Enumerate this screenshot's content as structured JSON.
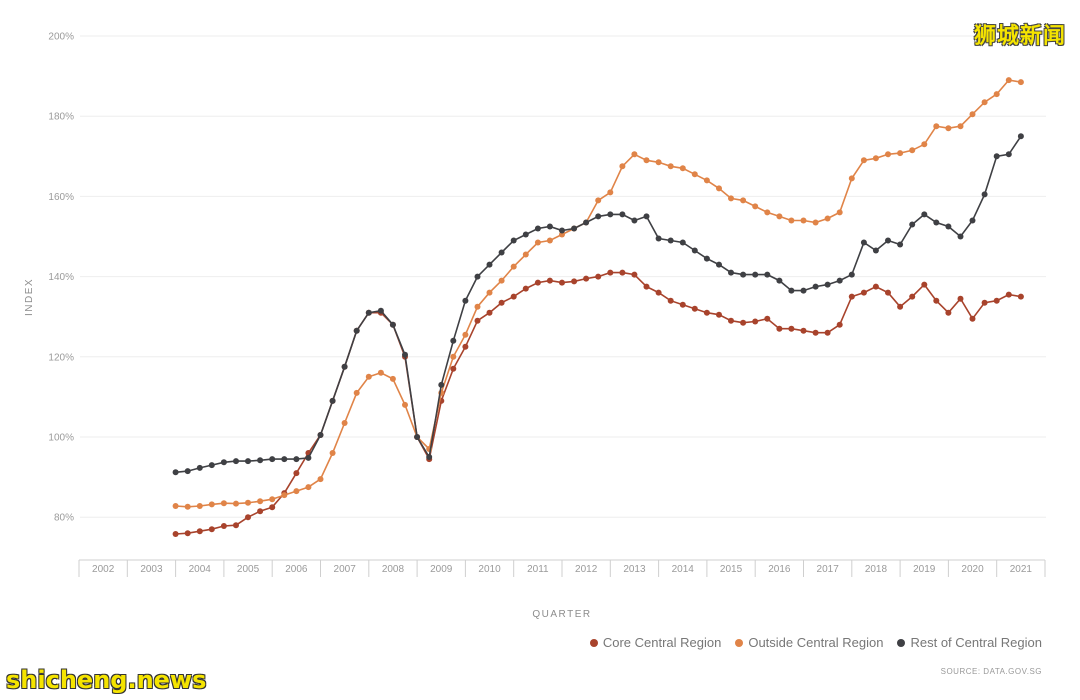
{
  "chart_data": {
    "type": "line",
    "xlabel": "QUARTER",
    "ylabel": "INDEX",
    "ylim": [
      70,
      200
    ],
    "yticks": [
      80,
      100,
      120,
      140,
      160,
      180,
      200
    ],
    "ytick_labels": [
      "80%",
      "100%",
      "120%",
      "140%",
      "160%",
      "180%",
      "200%"
    ],
    "xticks": [
      "2002",
      "2003",
      "2004",
      "2005",
      "2006",
      "2007",
      "2008",
      "2009",
      "2010",
      "2011",
      "2012",
      "2013",
      "2014",
      "2015",
      "2016",
      "2017",
      "2018",
      "2019",
      "2020",
      "2021"
    ],
    "x_start": "2004 Q1",
    "grid": true,
    "legend_position": "bottom-right",
    "source": "SOURCE: DATA.GOV.SG",
    "series": [
      {
        "name": "Core Central Region",
        "color": "#a8432c",
        "values": [
          75.8,
          76.0,
          76.5,
          77.0,
          77.8,
          78.0,
          80.0,
          81.5,
          82.5,
          86.0,
          91.0,
          96.0,
          100.5,
          109.0,
          117.5,
          126.5,
          131.0,
          131.0,
          128.0,
          120.0,
          100.0,
          94.5,
          109.0,
          117.0,
          122.5,
          129.0,
          131.0,
          133.5,
          135.0,
          137.0,
          138.5,
          139.0,
          138.5,
          138.8,
          139.5,
          140.0,
          141.0,
          141.0,
          140.5,
          137.5,
          136.0,
          134.0,
          133.0,
          132.0,
          131.0,
          130.5,
          129.0,
          128.5,
          128.8,
          129.5,
          127.0,
          127.0,
          126.5,
          126.0,
          126.0,
          128.0,
          135.0,
          136.0,
          137.5,
          136.0,
          132.5,
          135.0,
          138.0,
          134.0,
          131.0,
          134.5,
          129.5,
          133.5,
          134.0,
          135.5,
          135.0
        ]
      },
      {
        "name": "Outside Central Region",
        "color": "#e08448",
        "values": [
          82.8,
          82.6,
          82.8,
          83.2,
          83.5,
          83.4,
          83.6,
          84.0,
          84.5,
          85.5,
          86.5,
          87.5,
          89.5,
          96.0,
          103.5,
          111.0,
          115.0,
          116.0,
          114.5,
          108.0,
          100.0,
          97.0,
          111.0,
          120.0,
          125.5,
          132.5,
          136.0,
          139.0,
          142.5,
          145.5,
          148.5,
          149.0,
          150.5,
          152.0,
          153.5,
          159.0,
          161.0,
          167.5,
          170.5,
          169.0,
          168.5,
          167.5,
          167.0,
          165.5,
          164.0,
          162.0,
          159.5,
          159.0,
          157.5,
          156.0,
          155.0,
          154.0,
          154.0,
          153.5,
          154.5,
          156.0,
          164.5,
          169.0,
          169.5,
          170.5,
          170.8,
          171.5,
          173.0,
          177.5,
          177.0,
          177.5,
          180.5,
          183.5,
          185.5,
          189.0,
          188.5
        ]
      },
      {
        "name": "Rest of Central Region",
        "color": "#3f4044",
        "values": [
          91.2,
          91.5,
          92.3,
          93.0,
          93.7,
          94.0,
          94.0,
          94.2,
          94.5,
          94.5,
          94.5,
          94.8,
          100.5,
          109.0,
          117.5,
          126.5,
          131.0,
          131.5,
          128.0,
          120.5,
          100.0,
          95.0,
          113.0,
          124.0,
          134.0,
          140.0,
          143.0,
          146.0,
          149.0,
          150.5,
          152.0,
          152.5,
          151.5,
          152.0,
          153.5,
          155.0,
          155.5,
          155.5,
          154.0,
          155.0,
          149.5,
          149.0,
          148.5,
          146.5,
          144.5,
          143.0,
          141.0,
          140.5,
          140.5,
          140.5,
          139.0,
          136.5,
          136.5,
          137.5,
          138.0,
          139.0,
          140.5,
          148.5,
          146.5,
          149.0,
          148.0,
          153.0,
          155.5,
          153.5,
          152.5,
          150.0,
          154.0,
          160.5,
          170.0,
          170.5,
          175.0
        ]
      }
    ]
  },
  "watermarks": {
    "top_right": "狮城新闻",
    "bottom_left": "shicheng.news"
  }
}
